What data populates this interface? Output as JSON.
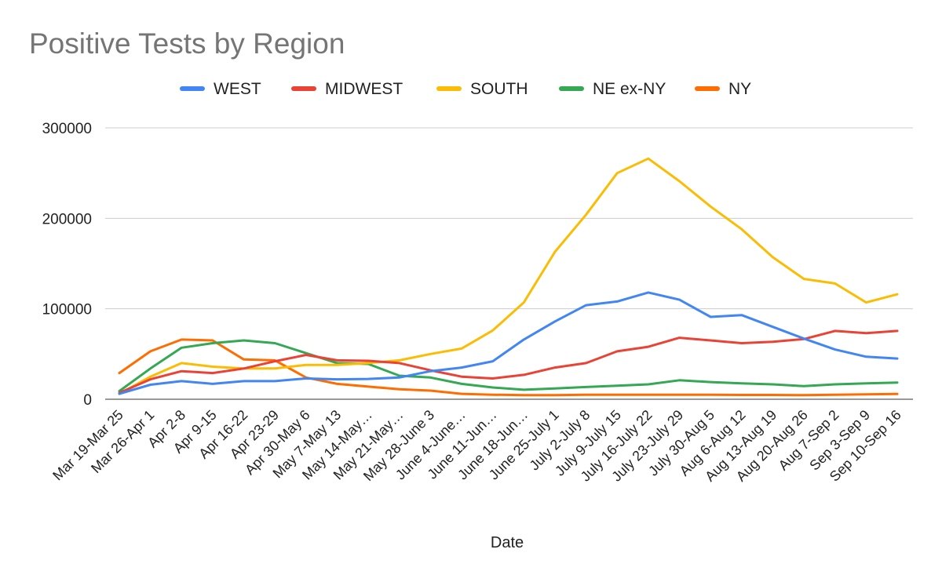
{
  "chart_data": {
    "type": "line",
    "title": "Positive Tests by Region",
    "xlabel": "Date",
    "ylabel": "",
    "ylim": [
      0,
      300000
    ],
    "yticks": [
      0,
      100000,
      200000,
      300000
    ],
    "ytick_labels": [
      "0",
      "100000",
      "200000",
      "300000"
    ],
    "legend_position": "top",
    "grid": true,
    "categories": [
      "Mar 19-Mar 25",
      "Mar 26-Apr 1",
      "Apr 2-8",
      "Apr 9-15",
      "Apr 16-22",
      "Apr 23-29",
      "Apr 30-May 6",
      "May 7-May 13",
      "May 14-May…",
      "May 21-May…",
      "May 28-June 3",
      "June 4-June…",
      "June 11-Jun…",
      "June 18-Jun…",
      "June 25-July 1",
      "July 2-July 8",
      "July 9-July 15",
      "July 16-July 22",
      "July 23-July 29",
      "July 30-Aug 5",
      "Aug 6-Aug 12",
      "Aug 13-Aug 19",
      "Aug 20-Aug 26",
      "Aug 7-Sep 2",
      "Sep 3-Sep 9",
      "Sep 10-Sep 16"
    ],
    "series": [
      {
        "name": "WEST",
        "color": "#4285f4",
        "values": [
          6000,
          16000,
          20000,
          17000,
          20000,
          20000,
          23000,
          22000,
          22500,
          24000,
          31000,
          35000,
          42000,
          66000,
          86000,
          104000,
          108000,
          118000,
          110000,
          91000,
          93000,
          80000,
          67000,
          55000,
          47000,
          45000
        ]
      },
      {
        "name": "MIDWEST",
        "color": "#ea4335",
        "values": [
          7000,
          22000,
          31000,
          29000,
          34000,
          42000,
          49000,
          43000,
          42500,
          40000,
          32000,
          25000,
          23000,
          27000,
          35000,
          40000,
          53000,
          58000,
          68000,
          65000,
          62000,
          63500,
          66500,
          75500,
          73000,
          75500
        ]
      },
      {
        "name": "SOUTH",
        "color": "#fbbc04",
        "values": [
          6000,
          25000,
          40000,
          36000,
          34000,
          34000,
          38000,
          38000,
          40000,
          43000,
          50000,
          56000,
          76000,
          107000,
          163000,
          204000,
          250000,
          266000,
          241000,
          213000,
          188000,
          157000,
          133000,
          128000,
          107000,
          116000
        ]
      },
      {
        "name": "NE ex-NY",
        "color": "#34a853",
        "values": [
          9000,
          34000,
          57000,
          62000,
          65000,
          62000,
          51000,
          40000,
          39000,
          26000,
          24000,
          17000,
          13000,
          10500,
          12000,
          13500,
          15000,
          16500,
          21000,
          19000,
          17500,
          16500,
          14500,
          16500,
          17500,
          18500
        ]
      },
      {
        "name": "NY",
        "color": "#ff6d01",
        "values": [
          29000,
          53000,
          66000,
          65000,
          44000,
          43000,
          24000,
          17000,
          14000,
          11000,
          9500,
          6000,
          5000,
          4500,
          4500,
          5000,
          5000,
          5000,
          5000,
          5000,
          4800,
          4800,
          4500,
          5000,
          5500,
          5800
        ]
      }
    ]
  }
}
